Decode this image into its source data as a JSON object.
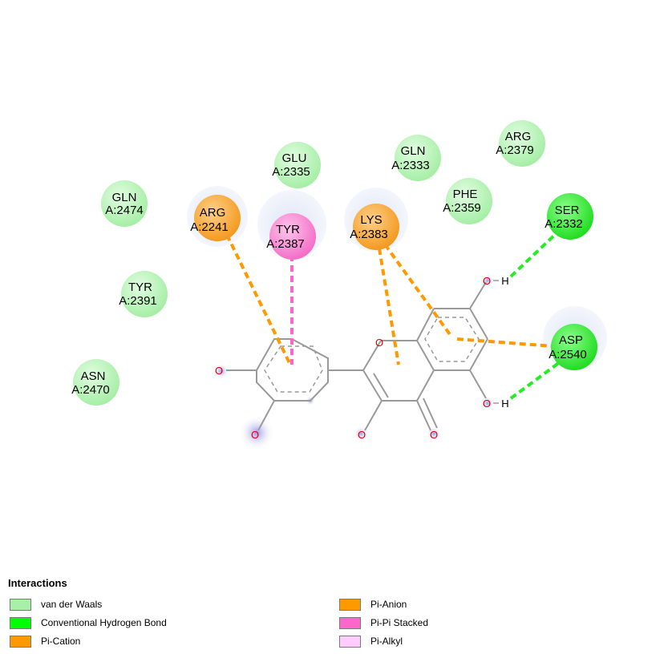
{
  "legend": {
    "title": "Interactions",
    "items": [
      {
        "label": "van der Waals",
        "color": "#a8f0a8"
      },
      {
        "label": "Conventional Hydrogen Bond",
        "color": "#00ff00"
      },
      {
        "label": "Pi-Cation",
        "color": "#ff9900"
      },
      {
        "label": "Pi-Anion",
        "color": "#ff9900"
      },
      {
        "label": "Pi-Pi Stacked",
        "color": "#ff66cc"
      },
      {
        "label": "Pi-Alkyl",
        "color": "#ffccff"
      }
    ]
  },
  "residues": [
    {
      "id": "gln2474",
      "name": "GLN",
      "number": "A:2474",
      "type": "van der Waals"
    },
    {
      "id": "arg2241",
      "name": "ARG",
      "number": "A:2241",
      "type": "Pi-Cation"
    },
    {
      "id": "glu2335",
      "name": "GLU",
      "number": "A:2335",
      "type": "van der Waals"
    },
    {
      "id": "tyr2387",
      "name": "TYR",
      "number": "A:2387",
      "type": "Pi-Pi Stacked"
    },
    {
      "id": "gln2333",
      "name": "GLN",
      "number": "A:2333",
      "type": "van der Waals"
    },
    {
      "id": "arg2379",
      "name": "ARG",
      "number": "A:2379",
      "type": "van der Waals"
    },
    {
      "id": "lys2383",
      "name": "LYS",
      "number": "A:2383",
      "type": "Pi-Cation"
    },
    {
      "id": "phe2359",
      "name": "PHE",
      "number": "A:2359",
      "type": "van der Waals"
    },
    {
      "id": "ser2332",
      "name": "SER",
      "number": "A:2332",
      "type": "Conventional Hydrogen Bond"
    },
    {
      "id": "tyr2391",
      "name": "TYR",
      "number": "A:2391",
      "type": "van der Waals"
    },
    {
      "id": "asp2540",
      "name": "ASP",
      "number": "A:2540",
      "type": "Pi-Anion"
    },
    {
      "id": "asn2470",
      "name": "ASN",
      "number": "A:2470",
      "type": "van der Waals"
    }
  ],
  "atoms": {
    "oxygen": "O",
    "hydrogen": "H"
  }
}
